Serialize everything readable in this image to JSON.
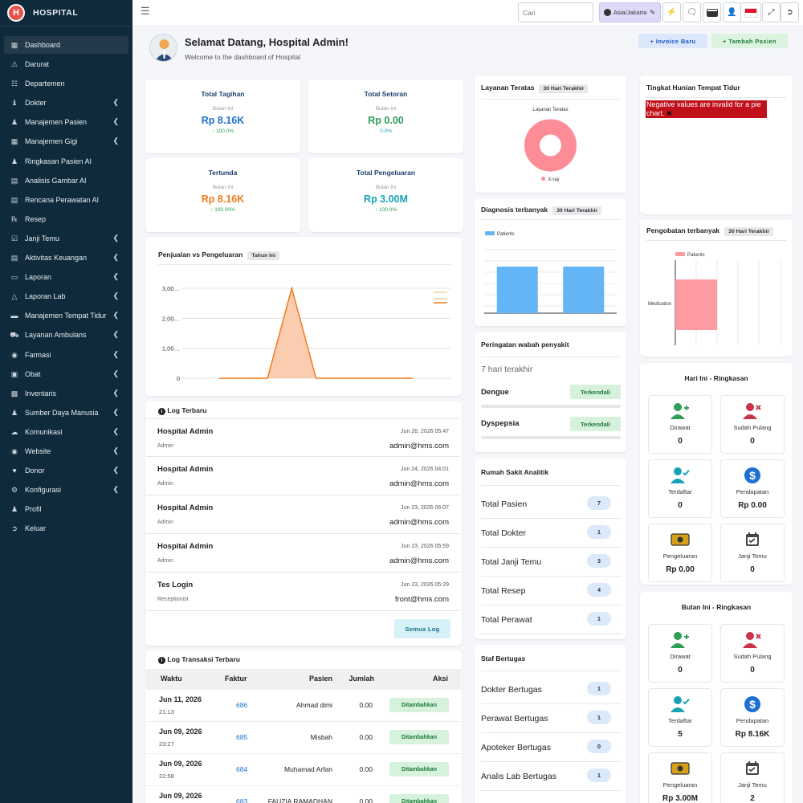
{
  "brand": {
    "name": "HOSPITAL",
    "logo_letter": "H"
  },
  "sidebar": {
    "items": [
      {
        "label": "Dashboard",
        "icon": "grid-icon",
        "chev": false,
        "active": true
      },
      {
        "label": "Darurat",
        "icon": "warning-icon",
        "chev": false
      },
      {
        "label": "Departemen",
        "icon": "sitemap-icon",
        "chev": false
      },
      {
        "label": "Dokter",
        "icon": "user-doctor-icon",
        "chev": true
      },
      {
        "label": "Manajemen Pasien",
        "icon": "user-icon",
        "chev": true
      },
      {
        "label": "Manajemen Gigi",
        "icon": "tooth-icon",
        "chev": true
      },
      {
        "label": "Ringkasan Pasien AI",
        "icon": "user-ai-icon",
        "chev": false
      },
      {
        "label": "Analisis Gambar AI",
        "icon": "image-icon",
        "chev": false
      },
      {
        "label": "Rencana Perawatan AI",
        "icon": "plan-icon",
        "chev": false
      },
      {
        "label": "Resep",
        "icon": "prescription-icon",
        "chev": false
      },
      {
        "label": "Janji Temu",
        "icon": "calendar-check-icon",
        "chev": true
      },
      {
        "label": "Aktivitas Keuangan",
        "icon": "money-icon",
        "chev": true
      },
      {
        "label": "Laporan",
        "icon": "file-icon",
        "chev": true
      },
      {
        "label": "Laporan Lab",
        "icon": "flask-icon",
        "chev": true
      },
      {
        "label": "Manajemen Tempat Tidur",
        "icon": "bed-icon",
        "chev": true
      },
      {
        "label": "Layanan Ambulans",
        "icon": "ambulance-icon",
        "chev": true
      },
      {
        "label": "Farmasi",
        "icon": "pills-icon",
        "chev": true
      },
      {
        "label": "Obat",
        "icon": "medkit-icon",
        "chev": true
      },
      {
        "label": "Inventaris",
        "icon": "inventory-icon",
        "chev": true
      },
      {
        "label": "Sumber Daya Manusia",
        "icon": "users-icon",
        "chev": true
      },
      {
        "label": "Komunikasi",
        "icon": "comments-icon",
        "chev": true
      },
      {
        "label": "Website",
        "icon": "globe-icon",
        "chev": true
      },
      {
        "label": "Donor",
        "icon": "heart-hand-icon",
        "chev": true
      },
      {
        "label": "Konfigurasi",
        "icon": "gear-icon",
        "chev": true
      },
      {
        "label": "Profil",
        "icon": "profile-icon",
        "chev": false
      },
      {
        "label": "Keluar",
        "icon": "logout-icon",
        "chev": false
      }
    ]
  },
  "topbar": {
    "search_placeholder": "Cari",
    "timezone": "Asia/Jakarta"
  },
  "welcome": {
    "title": "Selamat Datang, Hospital Admin!",
    "subtitle": "Welcome to the dashboard of Hospital",
    "btn_invoice": "+ Invoice Baru",
    "btn_patient": "+ Tambah Pasien"
  },
  "stats": [
    {
      "title": "Total Tagihan",
      "period": "Bulan Ini",
      "value": "Rp 8.16K",
      "change": "100.0%",
      "color": "#1d6fd1",
      "arrow": true
    },
    {
      "title": "Total Setoran",
      "period": "Bulan Ini",
      "value": "Rp 0.00",
      "change": "0.0%",
      "color": "#2f9e57",
      "arrow": false
    },
    {
      "title": "Tertunda",
      "period": "Bulan Ini",
      "value": "Rp 8.16K",
      "change": "100.00%",
      "color": "#f07c1b",
      "arrow": true
    },
    {
      "title": "Total Pengeluaran",
      "period": "Bulan Ini",
      "value": "Rp 3.00M",
      "change": "100.0%",
      "color": "#17a2b8",
      "arrow": true
    }
  ],
  "sales": {
    "title": "Penjualan vs Pengeluaran",
    "badge": "Tahun Ini"
  },
  "chart_data": [
    {
      "type": "area",
      "title": "Penjualan vs Pengeluaran",
      "y_ticks": [
        "3,00…",
        "2,00…",
        "1,00…",
        "0"
      ],
      "ylim": [
        0,
        3000000
      ],
      "values": [
        0,
        0,
        0,
        3000000,
        0,
        0,
        0,
        0,
        0
      ],
      "color": "#f07c1b"
    },
    {
      "type": "pie",
      "title": "Layanan Teratas",
      "categories": [
        "X-ray"
      ],
      "values": [
        1
      ],
      "color": "#fc8c96"
    },
    {
      "type": "bar",
      "title": "Diagnosis terbanyak",
      "series": [
        {
          "name": "Patients",
          "values": [
            1,
            1
          ]
        }
      ],
      "color": "#64b5f6"
    },
    {
      "type": "bar",
      "title": "Pengobatan terbanyak",
      "orientation": "horizontal",
      "categories": [
        "Medication"
      ],
      "series": [
        {
          "name": "Patients",
          "values": [
            1
          ]
        }
      ],
      "color": "#fc9ca2"
    }
  ],
  "logs": {
    "title": "Log Terbaru",
    "button": "Semua Log",
    "rows": [
      {
        "name": "Hospital Admin",
        "role": "Admin",
        "date": "Jun 26, 2026 05:47",
        "email": "admin@hms.com"
      },
      {
        "name": "Hospital Admin",
        "role": "Admin",
        "date": "Jun 24, 2026 04:01",
        "email": "admin@hms.com"
      },
      {
        "name": "Hospital Admin",
        "role": "Admin",
        "date": "Jun 23, 2026 06:07",
        "email": "admin@hms.com"
      },
      {
        "name": "Hospital Admin",
        "role": "Admin",
        "date": "Jun 23, 2026 05:59",
        "email": "admin@hms.com"
      },
      {
        "name": "Tes Login",
        "role": "Receptionist",
        "date": "Jun 23, 2026 05:29",
        "email": "front@hms.com"
      }
    ]
  },
  "transactions": {
    "title": "Log Transaksi Terbaru",
    "headers": [
      "Waktu",
      "Faktur",
      "Pasien",
      "Jumlah",
      "Aksi"
    ],
    "rows": [
      {
        "date": "Jun 11, 2026",
        "time": "21:13",
        "invoice": "686",
        "patient": "Ahmad dimi",
        "amount": "0.00",
        "action": "Ditambahkan"
      },
      {
        "date": "Jun 09, 2026",
        "time": "23:27",
        "invoice": "685",
        "patient": "Misbah",
        "amount": "0.00",
        "action": "Ditambahkan"
      },
      {
        "date": "Jun 09, 2026",
        "time": "22:58",
        "invoice": "684",
        "patient": "Muhamad Arfan",
        "amount": "0.00",
        "action": "Ditambahkan"
      },
      {
        "date": "Jun 09, 2026",
        "time": "",
        "invoice": "683",
        "patient": "FAUZIA RAMADHAN",
        "amount": "0.00",
        "action": "Ditambahkan"
      }
    ]
  },
  "services": {
    "title": "Layanan Teratas",
    "badge": "30 Hari Terakhir",
    "chart_title": "Layanan Teratas",
    "legend": "X-ray"
  },
  "diagnosis": {
    "title": "Diagnosis terbanyak",
    "badge": "30 Hari Terakhir",
    "legend": "Patients"
  },
  "outbreak": {
    "title": "Peringatan wabah penyakit",
    "period": "7 hari terakhir",
    "items": [
      {
        "name": "Dengue",
        "status": "Terkendali"
      },
      {
        "name": "Dyspepsia",
        "status": "Terkendali"
      }
    ]
  },
  "analytics": {
    "title": "Rumah Sakit Analitik",
    "items": [
      {
        "label": "Total Pasien",
        "value": "7"
      },
      {
        "label": "Total Dokter",
        "value": "1"
      },
      {
        "label": "Total Janji Temu",
        "value": "3"
      },
      {
        "label": "Total Resep",
        "value": "4"
      },
      {
        "label": "Total Perawat",
        "value": "1"
      }
    ]
  },
  "staff": {
    "title": "Staf Bertugas",
    "items": [
      {
        "label": "Dokter Bertugas",
        "value": "1"
      },
      {
        "label": "Perawat Bertugas",
        "value": "1"
      },
      {
        "label": "Apoteker Bertugas",
        "value": "0"
      },
      {
        "label": "Analis Lab Bertugas",
        "value": "1"
      }
    ]
  },
  "beds": {
    "title": "Tingkat Hunian Tempat Tidur",
    "error": "Negative values are invalid for a pie chart."
  },
  "treatment": {
    "title": "Pengobatan terbanyak",
    "badge": "30 Hari Terakhir",
    "legend": "Patients",
    "category": "Medication"
  },
  "today": {
    "title": "Hari Ini - Ringkasan",
    "tiles": [
      {
        "label": "Dirawat",
        "value": "0",
        "icon": "user-plus-icon",
        "color": "#2f9e57"
      },
      {
        "label": "Sudah Pulang",
        "value": "0",
        "icon": "user-times-icon",
        "color": "#c9344a"
      },
      {
        "label": "Terdaftar",
        "value": "0",
        "icon": "user-check-icon",
        "color": "#17a2b8"
      },
      {
        "label": "Pendapatan",
        "value": "Rp 0.00",
        "icon": "dollar-icon",
        "color": "#1d6fd1"
      },
      {
        "label": "Pengeluaran",
        "value": "Rp 0.00",
        "icon": "money-bill-icon",
        "color": "#d4a017"
      },
      {
        "label": "Janji Temu",
        "value": "0",
        "icon": "calendar-icon",
        "color": "#444"
      }
    ]
  },
  "month": {
    "title": "Bulan Ini - Ringkasan",
    "tiles": [
      {
        "label": "Dirawat",
        "value": "0",
        "icon": "user-plus-icon",
        "color": "#2f9e57"
      },
      {
        "label": "Sudah Pulang",
        "value": "0",
        "icon": "user-times-icon",
        "color": "#c9344a"
      },
      {
        "label": "Terdaftar",
        "value": "5",
        "icon": "user-check-icon",
        "color": "#17a2b8"
      },
      {
        "label": "Pendapatan",
        "value": "Rp 8.16K",
        "icon": "dollar-icon",
        "color": "#1d6fd1"
      },
      {
        "label": "Pengeluaran",
        "value": "Rp 3.00M",
        "icon": "money-bill-icon",
        "color": "#d4a017"
      },
      {
        "label": "Janji Temu",
        "value": "2",
        "icon": "calendar-icon",
        "color": "#444"
      }
    ]
  }
}
